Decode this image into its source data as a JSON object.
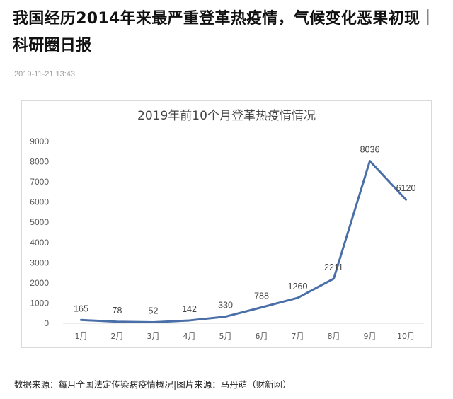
{
  "article": {
    "title": "我国经历2014年来最严重登革热疫情，气候变化恶果初现｜科研圈日报",
    "timestamp": "2019-11-21 13:43",
    "caption": "数据来源：每月全国法定传染病疫情概况|图片来源：马丹萌（财新网）"
  },
  "colors": {
    "line": "#4a6fa8",
    "grid": "#d9d9d9",
    "text": "#555555"
  },
  "chart_data": {
    "type": "line",
    "title": "2019年前10个月登革热疫情情况",
    "categories": [
      "1月",
      "2月",
      "3月",
      "4月",
      "5月",
      "6月",
      "7月",
      "8月",
      "9月",
      "10月"
    ],
    "values": [
      165,
      78,
      52,
      142,
      330,
      788,
      1260,
      2211,
      8036,
      6120
    ],
    "data_labels": [
      "165",
      "78",
      "52",
      "142",
      "330",
      "788",
      "1260",
      "2211",
      "8036",
      "6120"
    ],
    "yticks": [
      "0",
      "1000",
      "2000",
      "3000",
      "4000",
      "5000",
      "6000",
      "7000",
      "8000",
      "9000"
    ],
    "ylim": [
      0,
      9000
    ],
    "xlabel": "",
    "ylabel": "",
    "grid": false,
    "legend": "none"
  }
}
